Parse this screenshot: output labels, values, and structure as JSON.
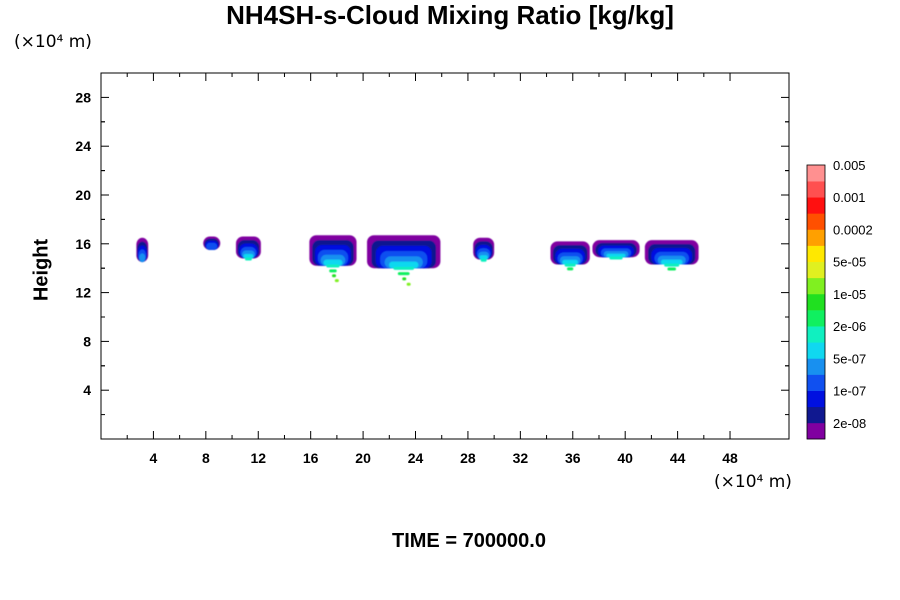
{
  "chart_data": {
    "type": "heatmap",
    "title": "NH4SH-s-Cloud Mixing Ratio [kg/kg]",
    "ylabel": "Height",
    "y_unit": "(×10⁴ m)",
    "x_unit": "(×10⁴ m)",
    "footer": "TIME = 700000.0",
    "xlim": [
      0,
      52.5
    ],
    "ylim": [
      0,
      30
    ],
    "x_ticks": [
      4,
      8,
      12,
      16,
      20,
      24,
      28,
      32,
      36,
      40,
      44,
      48
    ],
    "y_ticks": [
      4,
      8,
      12,
      16,
      20,
      24,
      28
    ],
    "grid": false,
    "colorbar": {
      "colors": [
        "#8000a0",
        "#101890",
        "#0010e0",
        "#1050f0",
        "#1890f0",
        "#10d8f0",
        "#10f0c0",
        "#10f060",
        "#20e020",
        "#80f020",
        "#e0f020",
        "#ffe800",
        "#ffa000",
        "#ff5000",
        "#ff1010",
        "#ff5050",
        "#ff9090"
      ],
      "labels": [
        "2e-08",
        "1e-07",
        "5e-07",
        "2e-06",
        "1e-05",
        "5e-05",
        "0.0002",
        "0.001",
        "0.005"
      ],
      "label_positions": [
        1,
        3,
        5,
        7,
        9,
        11,
        13,
        15,
        17
      ]
    },
    "clouds": [
      {
        "x": [
          2.7,
          3.6
        ],
        "y": [
          14.5,
          16.5
        ],
        "core": 5
      },
      {
        "x": [
          7.8,
          9.1
        ],
        "y": [
          15.5,
          16.6
        ],
        "core": 4
      },
      {
        "x": [
          10.3,
          12.2
        ],
        "y": [
          14.8,
          16.6
        ],
        "core": 7
      },
      {
        "x": [
          15.9,
          19.5
        ],
        "y": [
          14.2,
          16.7
        ],
        "core": 10
      },
      {
        "x": [
          20.3,
          25.9
        ],
        "y": [
          14.0,
          16.7
        ],
        "core": 10
      },
      {
        "x": [
          28.4,
          30.0
        ],
        "y": [
          14.7,
          16.5
        ],
        "core": 7
      },
      {
        "x": [
          34.3,
          37.3
        ],
        "y": [
          14.3,
          16.2
        ],
        "core": 8
      },
      {
        "x": [
          37.5,
          41.1
        ],
        "y": [
          14.9,
          16.3
        ],
        "core": 7
      },
      {
        "x": [
          41.5,
          45.6
        ],
        "y": [
          14.3,
          16.3
        ],
        "core": 8
      }
    ]
  }
}
